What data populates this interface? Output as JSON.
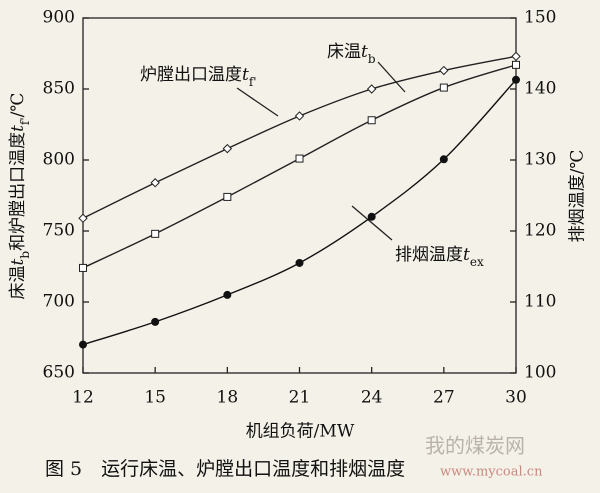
{
  "chart_data": {
    "type": "line",
    "xlabel": "机组负荷/MW",
    "ylabel_parts": [
      {
        "t": "床温"
      },
      {
        "t": "t",
        "k": "var"
      },
      {
        "t": "b",
        "k": "sub"
      },
      {
        "t": "和炉膛出口温度"
      },
      {
        "t": "t",
        "k": "var"
      },
      {
        "t": "f'",
        "k": "sub"
      },
      {
        "t": "/℃"
      }
    ],
    "y2label": "排烟温度/℃",
    "caption": "图 5　运行床温、炉膛出口温度和排烟温度",
    "watermark": [
      "我的煤炭网",
      "www.mycoal.cn"
    ],
    "x": [
      12,
      15,
      18,
      21,
      24,
      27,
      30
    ],
    "xlim": [
      12,
      30
    ],
    "xticks": [
      12,
      15,
      18,
      21,
      24,
      27,
      30
    ],
    "ylim": [
      650,
      900
    ],
    "yticks": [
      650,
      700,
      750,
      800,
      850,
      900
    ],
    "y2lim": [
      100,
      150
    ],
    "y2ticks": [
      100,
      110,
      120,
      130,
      140,
      150
    ],
    "series": [
      {
        "name": "炉膛出口温度",
        "symbol": "t",
        "subscript": "f'",
        "marker": "diamond",
        "color": "#222222",
        "values": [
          759,
          784,
          808,
          831,
          850,
          863,
          873
        ]
      },
      {
        "name": "床温",
        "symbol": "t",
        "subscript": "b",
        "marker": "square",
        "color": "#222222",
        "values": [
          724,
          748,
          774,
          801,
          828,
          851,
          867
        ]
      },
      {
        "name": "排烟温度",
        "symbol": "t",
        "subscript": "ex",
        "marker": "dot",
        "color": "#111111",
        "axis": "y2",
        "values": [
          104,
          107.2,
          111,
          115.5,
          122,
          130.1,
          141.3
        ]
      }
    ]
  }
}
